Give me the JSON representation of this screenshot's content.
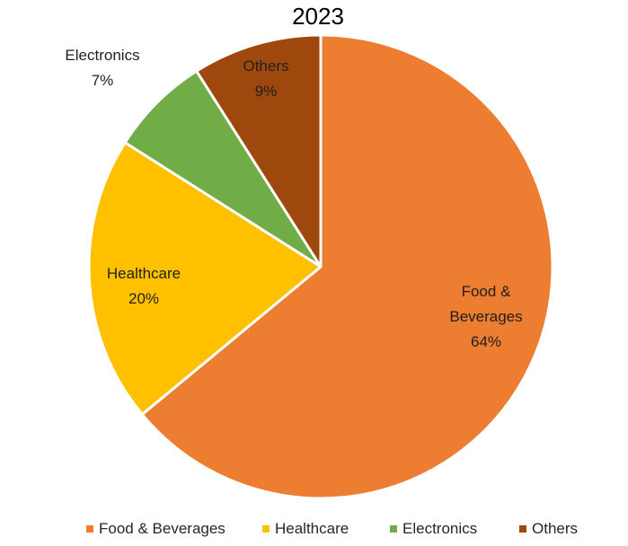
{
  "chart_data": {
    "type": "pie",
    "title": "2023",
    "start_angle": "12 o'clock",
    "direction": "clockwise",
    "legend_position": "bottom",
    "slices": [
      {
        "name": "Food & Beverages",
        "value": 64,
        "label_lines": [
          "Food &",
          "Beverages",
          "64%"
        ],
        "color": "#ED7D31"
      },
      {
        "name": "Healthcare",
        "value": 20,
        "label_lines": [
          "Healthcare",
          "20%"
        ],
        "color": "#FFC000"
      },
      {
        "name": "Electronics",
        "value": 7,
        "label_lines": [
          "Electronics",
          "7%"
        ],
        "color": "#70AD47"
      },
      {
        "name": "Others",
        "value": 9,
        "label_lines": [
          "Others",
          "9%"
        ],
        "color": "#9E480E"
      }
    ]
  }
}
